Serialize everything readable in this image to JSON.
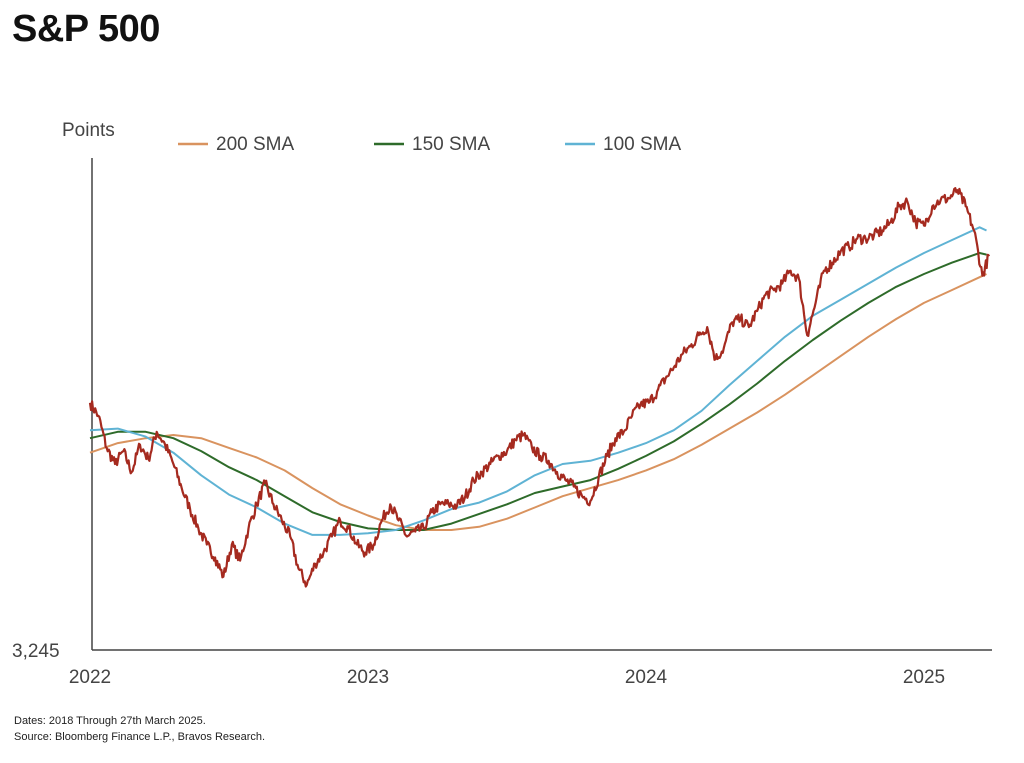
{
  "title": "S&P 500",
  "footer": {
    "dates": "Dates: 2018 Through 27th March 2025.",
    "source": "Source: Bloomberg Finance L.P., Bravos Research."
  },
  "chart_data": {
    "type": "line",
    "title": "S&P 500",
    "ylabel": "Points",
    "xlabel": "",
    "y_tick_label": "3,245",
    "ylim": [
      3245,
      6300
    ],
    "xlim": [
      2022.0,
      2025.25
    ],
    "x_tick_labels": [
      "2022",
      "2023",
      "2024",
      "2025"
    ],
    "x_ticks": [
      2022,
      2023,
      2024,
      2025
    ],
    "legend": [
      "200 SMA",
      "150 SMA",
      "100 SMA"
    ],
    "legend_position": "top",
    "grid": false,
    "colors": {
      "price": "#a52a1f",
      "sma200": "#d9935f",
      "sma150": "#2e6b2a",
      "sma100": "#5fb3d4"
    },
    "series": [
      {
        "name": "S&P 500",
        "color_key": "price",
        "x": [
          2022.0,
          2022.03,
          2022.06,
          2022.09,
          2022.12,
          2022.15,
          2022.18,
          2022.21,
          2022.24,
          2022.27,
          2022.3,
          2022.33,
          2022.36,
          2022.39,
          2022.42,
          2022.45,
          2022.48,
          2022.51,
          2022.54,
          2022.57,
          2022.6,
          2022.63,
          2022.66,
          2022.69,
          2022.72,
          2022.75,
          2022.78,
          2022.81,
          2022.84,
          2022.87,
          2022.9,
          2022.93,
          2022.96,
          2022.99,
          2023.02,
          2023.05,
          2023.08,
          2023.11,
          2023.14,
          2023.17,
          2023.2,
          2023.23,
          2023.26,
          2023.29,
          2023.32,
          2023.35,
          2023.38,
          2023.41,
          2023.44,
          2023.47,
          2023.5,
          2023.53,
          2023.56,
          2023.59,
          2023.62,
          2023.65,
          2023.68,
          2023.71,
          2023.74,
          2023.77,
          2023.8,
          2023.83,
          2023.86,
          2023.89,
          2023.92,
          2023.95,
          2023.98,
          2024.01,
          2024.04,
          2024.07,
          2024.1,
          2024.13,
          2024.16,
          2024.19,
          2024.22,
          2024.25,
          2024.28,
          2024.31,
          2024.34,
          2024.37,
          2024.4,
          2024.43,
          2024.46,
          2024.49,
          2024.52,
          2024.55,
          2024.58,
          2024.61,
          2024.64,
          2024.67,
          2024.7,
          2024.73,
          2024.76,
          2024.79,
          2024.82,
          2024.85,
          2024.88,
          2024.91,
          2024.94,
          2024.97,
          2025.0,
          2025.03,
          2025.06,
          2025.09,
          2025.12,
          2025.15,
          2025.18,
          2025.21,
          2025.235
        ],
        "values": [
          4780,
          4700,
          4500,
          4400,
          4480,
          4350,
          4520,
          4430,
          4600,
          4520,
          4400,
          4250,
          4120,
          4000,
          3900,
          3820,
          3700,
          3900,
          3800,
          4000,
          4150,
          4280,
          4150,
          4050,
          3950,
          3750,
          3650,
          3780,
          3850,
          3950,
          4050,
          4000,
          3900,
          3850,
          3900,
          4050,
          4150,
          4050,
          3950,
          3980,
          4000,
          4100,
          4150,
          4150,
          4140,
          4200,
          4300,
          4350,
          4400,
          4450,
          4480,
          4550,
          4580,
          4500,
          4450,
          4420,
          4350,
          4300,
          4260,
          4200,
          4170,
          4320,
          4450,
          4560,
          4600,
          4700,
          4770,
          4780,
          4850,
          4930,
          5000,
          5080,
          5130,
          5200,
          5250,
          5050,
          5120,
          5280,
          5300,
          5250,
          5350,
          5450,
          5480,
          5520,
          5600,
          5550,
          5200,
          5400,
          5600,
          5650,
          5720,
          5750,
          5800,
          5800,
          5820,
          5850,
          5900,
          6000,
          6030,
          5900,
          5880,
          6000,
          6040,
          6050,
          6100,
          6000,
          5850,
          5570,
          5700
        ]
      },
      {
        "name": "200 SMA",
        "color_key": "sma200",
        "x": [
          2022.0,
          2022.1,
          2022.2,
          2022.3,
          2022.4,
          2022.5,
          2022.6,
          2022.7,
          2022.8,
          2022.9,
          2023.0,
          2023.1,
          2023.2,
          2023.3,
          2023.4,
          2023.5,
          2023.6,
          2023.7,
          2023.8,
          2023.9,
          2024.0,
          2024.1,
          2024.2,
          2024.3,
          2024.4,
          2024.5,
          2024.6,
          2024.7,
          2024.8,
          2024.9,
          2025.0,
          2025.1,
          2025.2,
          2025.225
        ],
        "values": [
          4470,
          4530,
          4560,
          4580,
          4560,
          4500,
          4440,
          4360,
          4250,
          4150,
          4080,
          4020,
          3990,
          3990,
          4010,
          4060,
          4130,
          4200,
          4250,
          4300,
          4360,
          4430,
          4520,
          4620,
          4720,
          4830,
          4950,
          5070,
          5190,
          5300,
          5400,
          5480,
          5560,
          5580
        ]
      },
      {
        "name": "150 SMA",
        "color_key": "sma150",
        "x": [
          2022.0,
          2022.1,
          2022.2,
          2022.3,
          2022.4,
          2022.5,
          2022.6,
          2022.7,
          2022.8,
          2022.9,
          2023.0,
          2023.1,
          2023.2,
          2023.3,
          2023.4,
          2023.5,
          2023.6,
          2023.7,
          2023.8,
          2023.9,
          2024.0,
          2024.1,
          2024.2,
          2024.3,
          2024.4,
          2024.5,
          2024.6,
          2024.7,
          2024.8,
          2024.9,
          2025.0,
          2025.1,
          2025.2,
          2025.225
        ],
        "values": [
          4560,
          4600,
          4600,
          4560,
          4480,
          4380,
          4300,
          4200,
          4100,
          4040,
          4000,
          3990,
          3990,
          4030,
          4090,
          4150,
          4220,
          4260,
          4300,
          4370,
          4450,
          4540,
          4650,
          4770,
          4900,
          5040,
          5170,
          5290,
          5400,
          5500,
          5580,
          5650,
          5710,
          5700
        ]
      },
      {
        "name": "100 SMA",
        "color_key": "sma100",
        "x": [
          2022.0,
          2022.1,
          2022.2,
          2022.3,
          2022.4,
          2022.5,
          2022.6,
          2022.7,
          2022.8,
          2022.9,
          2023.0,
          2023.1,
          2023.2,
          2023.3,
          2023.4,
          2023.5,
          2023.6,
          2023.7,
          2023.8,
          2023.9,
          2024.0,
          2024.1,
          2024.2,
          2024.3,
          2024.4,
          2024.5,
          2024.6,
          2024.7,
          2024.8,
          2024.9,
          2025.0,
          2025.1,
          2025.2,
          2025.225
        ],
        "values": [
          4610,
          4620,
          4570,
          4470,
          4330,
          4210,
          4130,
          4030,
          3960,
          3960,
          3970,
          3990,
          4050,
          4120,
          4160,
          4230,
          4330,
          4400,
          4420,
          4470,
          4530,
          4610,
          4730,
          4890,
          5040,
          5190,
          5320,
          5420,
          5520,
          5620,
          5710,
          5790,
          5870,
          5850
        ]
      }
    ]
  }
}
